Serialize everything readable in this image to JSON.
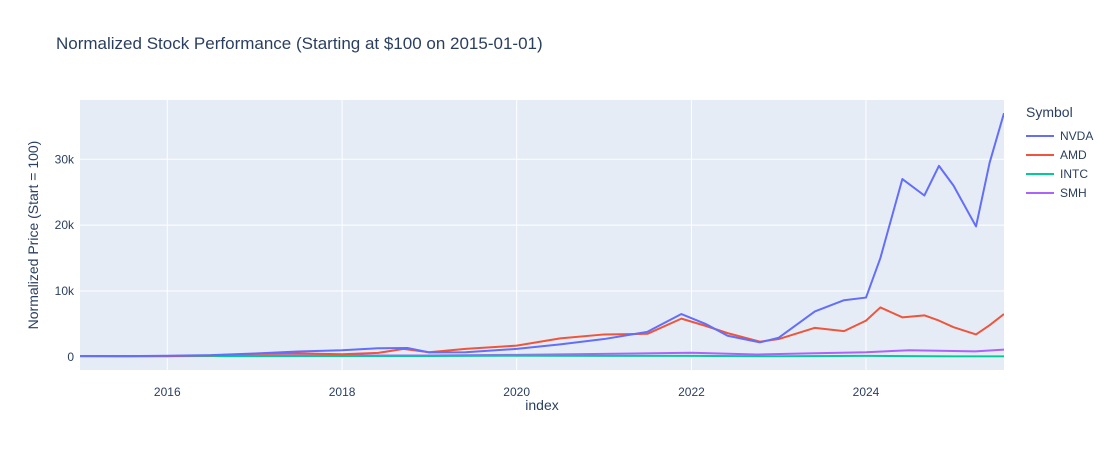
{
  "chart_data": {
    "type": "line",
    "title": "Normalized Stock Performance (Starting at $100 on 2015-01-01)",
    "xlabel": "index",
    "ylabel": "Normalized Price (Start = 100)",
    "xlim": [
      "2015-01-01",
      "2025-07-31"
    ],
    "ylim": [
      -2000,
      39000
    ],
    "grid": true,
    "legend_title": "Symbol",
    "legend_placement": "right",
    "x_ticks": [
      {
        "value": "2016-01-01",
        "label": "2016"
      },
      {
        "value": "2018-01-01",
        "label": "2018"
      },
      {
        "value": "2020-01-01",
        "label": "2020"
      },
      {
        "value": "2022-01-01",
        "label": "2022"
      },
      {
        "value": "2024-01-01",
        "label": "2024"
      }
    ],
    "y_ticks": [
      {
        "value": 0,
        "label": "0"
      },
      {
        "value": 10000,
        "label": "10k"
      },
      {
        "value": 20000,
        "label": "20k"
      },
      {
        "value": 30000,
        "label": "30k"
      }
    ],
    "series": [
      {
        "name": "NVDA",
        "color": "#636efa",
        "x": [
          "2015-01-01",
          "2015-07-01",
          "2016-01-01",
          "2016-07-01",
          "2017-01-01",
          "2017-07-01",
          "2018-01-01",
          "2018-06-01",
          "2018-10-01",
          "2018-12-31",
          "2019-06-01",
          "2020-01-01",
          "2020-07-01",
          "2021-01-01",
          "2021-07-01",
          "2021-11-20",
          "2022-03-01",
          "2022-06-01",
          "2022-10-15",
          "2023-01-01",
          "2023-06-01",
          "2023-10-01",
          "2024-01-01",
          "2024-03-01",
          "2024-06-01",
          "2024-09-01",
          "2024-11-01",
          "2025-01-01",
          "2025-04-05",
          "2025-06-01",
          "2025-07-31"
        ],
        "y": [
          100,
          110,
          160,
          250,
          500,
          800,
          1000,
          1300,
          1350,
          680,
          700,
          1200,
          1900,
          2700,
          3800,
          6500,
          5000,
          3200,
          2200,
          2900,
          6900,
          8600,
          9000,
          15000,
          27000,
          24500,
          29000,
          26000,
          19800,
          29500,
          37000
        ]
      },
      {
        "name": "AMD",
        "color": "#ef553b",
        "x": [
          "2015-01-01",
          "2015-07-01",
          "2016-01-01",
          "2016-07-01",
          "2017-01-01",
          "2017-07-01",
          "2018-01-01",
          "2018-06-01",
          "2018-09-15",
          "2018-12-31",
          "2019-06-01",
          "2020-01-01",
          "2020-07-01",
          "2021-01-01",
          "2021-07-01",
          "2021-11-20",
          "2022-03-01",
          "2022-06-01",
          "2022-10-15",
          "2023-01-01",
          "2023-06-01",
          "2023-10-01",
          "2024-01-01",
          "2024-03-01",
          "2024-06-01",
          "2024-09-01",
          "2024-11-01",
          "2025-01-01",
          "2025-04-05",
          "2025-06-01",
          "2025-07-31"
        ],
        "y": [
          100,
          70,
          100,
          220,
          450,
          520,
          400,
          600,
          1200,
          700,
          1200,
          1700,
          2800,
          3400,
          3500,
          5800,
          4700,
          3600,
          2300,
          2700,
          4400,
          3900,
          5500,
          7500,
          6000,
          6300,
          5500,
          4500,
          3400,
          4800,
          6500
        ]
      },
      {
        "name": "INTC",
        "color": "#00cc96",
        "x": [
          "2015-01-01",
          "2016-01-01",
          "2017-01-01",
          "2018-01-01",
          "2019-01-01",
          "2020-01-01",
          "2021-01-01",
          "2022-01-01",
          "2023-01-01",
          "2024-01-01",
          "2025-01-01",
          "2025-07-31"
        ],
        "y": [
          100,
          95,
          100,
          130,
          135,
          170,
          150,
          145,
          80,
          140,
          60,
          65
        ]
      },
      {
        "name": "SMH",
        "color": "#ab63fa",
        "x": [
          "2015-01-01",
          "2016-01-01",
          "2017-01-01",
          "2018-01-01",
          "2019-01-01",
          "2020-01-01",
          "2021-01-01",
          "2022-01-01",
          "2022-10-01",
          "2023-06-01",
          "2024-01-01",
          "2024-07-01",
          "2025-04-01",
          "2025-07-31"
        ],
        "y": [
          100,
          110,
          160,
          200,
          200,
          300,
          450,
          620,
          350,
          550,
          700,
          1000,
          820,
          1100
        ]
      }
    ]
  }
}
